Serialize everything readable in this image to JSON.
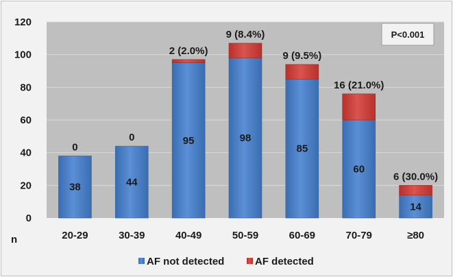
{
  "chart_data": {
    "type": "bar",
    "stacked": true,
    "categories": [
      "20-29",
      "30-39",
      "40-49",
      "50-59",
      "60-69",
      "70-79",
      "≥80"
    ],
    "series": [
      {
        "name": "AF not detected",
        "values": [
          38,
          44,
          95,
          98,
          85,
          60,
          14
        ],
        "color": "#4a7ebb"
      },
      {
        "name": "AF detected",
        "values": [
          0,
          0,
          2,
          9,
          9,
          16,
          6
        ],
        "color": "#c0392b"
      }
    ],
    "bottom_labels": [
      "38",
      "44",
      "95",
      "98",
      "85",
      "60",
      "14"
    ],
    "top_labels": [
      "0",
      "0",
      "2 (2.0%)",
      "9 (8.4%)",
      "9 (9.5%)",
      "16 (21.0%)",
      "6 (30.0%)"
    ],
    "annotation": "P<0.001",
    "xlabel": "n",
    "ylim": [
      0,
      120
    ],
    "yticks": [
      "0",
      "20",
      "40",
      "60",
      "80",
      "100",
      "120"
    ],
    "grid": true,
    "legend_position": "bottom"
  }
}
